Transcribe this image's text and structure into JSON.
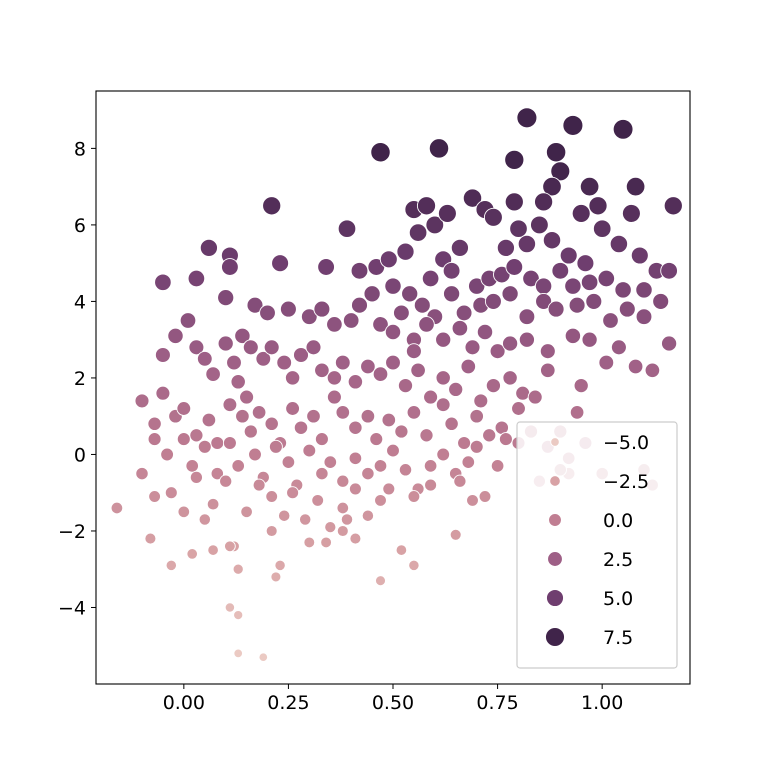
{
  "chart_data": {
    "type": "scatter",
    "title": "",
    "xlabel": "",
    "ylabel": "",
    "xlim": [
      -0.21,
      1.21
    ],
    "ylim": [
      -6.0,
      9.5
    ],
    "xticks": [
      0.0,
      0.25,
      0.5,
      0.75,
      1.0
    ],
    "xtick_labels": [
      "0.00",
      "0.25",
      "0.50",
      "0.75",
      "1.00"
    ],
    "yticks": [
      -4,
      -2,
      0,
      2,
      4,
      6,
      8
    ],
    "ytick_labels": [
      "−4",
      "−2",
      "0",
      "2",
      "4",
      "6",
      "8"
    ],
    "grid": false,
    "hue_and_size_variable": "value",
    "legend": {
      "placement": "lower-right",
      "entries": [
        {
          "label": "−5.0",
          "value": -5.0,
          "color": "#ebcac3"
        },
        {
          "label": "−2.5",
          "value": -2.5,
          "color": "#d8a2a5"
        },
        {
          "label": "0.0",
          "value": 0.0,
          "color": "#c07e92"
        },
        {
          "label": "2.5",
          "value": 2.5,
          "color": "#9e5f86"
        },
        {
          "label": "5.0",
          "value": 5.0,
          "color": "#6f3e6f"
        },
        {
          "label": "7.5",
          "value": 7.5,
          "color": "#40244a"
        }
      ]
    },
    "points": [
      [
        -0.05,
        4.5
      ],
      [
        0.03,
        4.6
      ],
      [
        0.06,
        5.4
      ],
      [
        0.11,
        5.2
      ],
      [
        0.11,
        4.9
      ],
      [
        0.21,
        6.5
      ],
      [
        0.23,
        5.0
      ],
      [
        0.34,
        4.9
      ],
      [
        0.39,
        5.9
      ],
      [
        0.47,
        7.9
      ],
      [
        0.61,
        8.0
      ],
      [
        0.82,
        8.8
      ],
      [
        0.93,
        8.6
      ],
      [
        1.05,
        8.5
      ],
      [
        0.79,
        7.7
      ],
      [
        0.89,
        7.9
      ],
      [
        0.9,
        7.4
      ],
      [
        0.88,
        7.0
      ],
      [
        0.97,
        7.0
      ],
      [
        1.08,
        7.0
      ],
      [
        0.69,
        6.7
      ],
      [
        0.79,
        6.6
      ],
      [
        0.86,
        6.6
      ],
      [
        0.95,
        6.3
      ],
      [
        0.99,
        6.5
      ],
      [
        1.07,
        6.3
      ],
      [
        1.17,
        6.5
      ],
      [
        0.55,
        6.4
      ],
      [
        0.58,
        6.5
      ],
      [
        0.6,
        6.0
      ],
      [
        0.63,
        6.3
      ],
      [
        0.66,
        5.4
      ],
      [
        0.72,
        6.4
      ],
      [
        0.74,
        6.2
      ],
      [
        0.77,
        5.4
      ],
      [
        0.8,
        5.9
      ],
      [
        0.82,
        5.5
      ],
      [
        0.85,
        6.0
      ],
      [
        0.88,
        5.6
      ],
      [
        0.92,
        5.2
      ],
      [
        0.96,
        5.0
      ],
      [
        1.0,
        5.9
      ],
      [
        1.04,
        5.5
      ],
      [
        1.09,
        5.2
      ],
      [
        1.13,
        4.8
      ],
      [
        1.16,
        4.8
      ],
      [
        0.46,
        4.9
      ],
      [
        0.49,
        5.1
      ],
      [
        0.53,
        5.3
      ],
      [
        0.56,
        5.8
      ],
      [
        0.59,
        4.6
      ],
      [
        0.62,
        5.1
      ],
      [
        0.64,
        4.8
      ],
      [
        0.7,
        4.4
      ],
      [
        0.73,
        4.6
      ],
      [
        0.76,
        4.7
      ],
      [
        0.79,
        4.9
      ],
      [
        0.83,
        4.6
      ],
      [
        0.86,
        4.4
      ],
      [
        0.9,
        4.8
      ],
      [
        0.93,
        4.4
      ],
      [
        0.97,
        4.5
      ],
      [
        1.01,
        4.6
      ],
      [
        1.05,
        4.3
      ],
      [
        1.1,
        4.3
      ],
      [
        1.14,
        4.0
      ],
      [
        0.42,
        4.8
      ],
      [
        0.45,
        4.2
      ],
      [
        0.5,
        4.4
      ],
      [
        0.54,
        4.2
      ],
      [
        0.57,
        3.9
      ],
      [
        0.6,
        3.6
      ],
      [
        0.64,
        4.2
      ],
      [
        0.67,
        3.7
      ],
      [
        0.71,
        3.9
      ],
      [
        0.74,
        4.0
      ],
      [
        0.78,
        4.2
      ],
      [
        0.82,
        3.6
      ],
      [
        0.86,
        4.0
      ],
      [
        0.89,
        3.8
      ],
      [
        0.94,
        3.9
      ],
      [
        0.98,
        4.0
      ],
      [
        1.02,
        3.5
      ],
      [
        1.06,
        3.8
      ],
      [
        1.1,
        3.6
      ],
      [
        1.16,
        2.9
      ],
      [
        0.1,
        4.1
      ],
      [
        0.17,
        3.9
      ],
      [
        0.2,
        3.7
      ],
      [
        0.25,
        3.8
      ],
      [
        0.3,
        3.6
      ],
      [
        0.33,
        3.8
      ],
      [
        0.36,
        3.4
      ],
      [
        0.4,
        3.5
      ],
      [
        0.42,
        3.9
      ],
      [
        0.47,
        3.4
      ],
      [
        0.5,
        3.2
      ],
      [
        0.52,
        3.7
      ],
      [
        0.55,
        3.0
      ],
      [
        0.58,
        3.4
      ],
      [
        0.62,
        3.0
      ],
      [
        0.66,
        3.3
      ],
      [
        0.69,
        2.8
      ],
      [
        0.72,
        3.2
      ],
      [
        0.75,
        2.7
      ],
      [
        0.78,
        2.9
      ],
      [
        0.82,
        3.0
      ],
      [
        0.87,
        2.7
      ],
      [
        0.93,
        3.1
      ],
      [
        0.97,
        3.0
      ],
      [
        1.01,
        2.4
      ],
      [
        1.04,
        2.8
      ],
      [
        1.08,
        2.3
      ],
      [
        1.12,
        2.2
      ],
      [
        -0.05,
        2.6
      ],
      [
        -0.02,
        3.1
      ],
      [
        0.01,
        3.5
      ],
      [
        0.03,
        2.8
      ],
      [
        0.05,
        2.5
      ],
      [
        0.07,
        2.1
      ],
      [
        0.1,
        2.9
      ],
      [
        0.12,
        2.4
      ],
      [
        0.14,
        3.1
      ],
      [
        0.16,
        2.8
      ],
      [
        0.19,
        2.5
      ],
      [
        0.21,
        2.8
      ],
      [
        0.24,
        2.4
      ],
      [
        0.26,
        2.0
      ],
      [
        0.28,
        2.6
      ],
      [
        0.31,
        2.8
      ],
      [
        0.33,
        2.2
      ],
      [
        0.36,
        2.0
      ],
      [
        0.38,
        2.4
      ],
      [
        0.41,
        1.9
      ],
      [
        0.44,
        2.3
      ],
      [
        0.47,
        2.1
      ],
      [
        0.5,
        2.4
      ],
      [
        0.53,
        1.8
      ],
      [
        0.56,
        2.2
      ],
      [
        0.59,
        1.5
      ],
      [
        0.62,
        2.0
      ],
      [
        0.65,
        1.7
      ],
      [
        0.68,
        2.3
      ],
      [
        0.71,
        1.4
      ],
      [
        0.74,
        1.8
      ],
      [
        0.78,
        2.0
      ],
      [
        0.81,
        1.6
      ],
      [
        0.84,
        1.5
      ],
      [
        0.87,
        2.2
      ],
      [
        0.95,
        1.8
      ],
      [
        -0.1,
        1.4
      ],
      [
        -0.07,
        0.8
      ],
      [
        -0.05,
        1.6
      ],
      [
        -0.02,
        1.0
      ],
      [
        0.0,
        1.2
      ],
      [
        0.03,
        0.5
      ],
      [
        0.06,
        0.9
      ],
      [
        0.08,
        0.3
      ],
      [
        0.11,
        1.3
      ],
      [
        0.14,
        1.0
      ],
      [
        0.16,
        0.6
      ],
      [
        0.18,
        1.1
      ],
      [
        0.21,
        0.8
      ],
      [
        0.23,
        0.3
      ],
      [
        0.26,
        1.2
      ],
      [
        0.28,
        0.7
      ],
      [
        0.31,
        1.0
      ],
      [
        0.33,
        0.4
      ],
      [
        0.36,
        1.5
      ],
      [
        0.38,
        1.1
      ],
      [
        0.41,
        0.7
      ],
      [
        0.44,
        1.0
      ],
      [
        0.46,
        0.4
      ],
      [
        0.49,
        0.9
      ],
      [
        0.52,
        0.6
      ],
      [
        0.55,
        1.1
      ],
      [
        0.58,
        0.5
      ],
      [
        0.62,
        1.3
      ],
      [
        0.64,
        0.8
      ],
      [
        0.67,
        0.3
      ],
      [
        0.7,
        1.0
      ],
      [
        0.73,
        0.5
      ],
      [
        0.76,
        0.7
      ],
      [
        0.8,
        0.3
      ],
      [
        0.83,
        0.6
      ],
      [
        0.87,
        0.2
      ],
      [
        0.9,
        0.6
      ],
      [
        0.94,
        1.1
      ],
      [
        0.96,
        0.3
      ],
      [
        -0.07,
        0.4
      ],
      [
        -0.04,
        0.0
      ],
      [
        0.0,
        0.4
      ],
      [
        0.02,
        -0.3
      ],
      [
        0.05,
        0.2
      ],
      [
        0.08,
        -0.5
      ],
      [
        0.11,
        0.3
      ],
      [
        0.13,
        -0.3
      ],
      [
        0.17,
        0.0
      ],
      [
        0.19,
        -0.6
      ],
      [
        0.22,
        0.2
      ],
      [
        0.25,
        -0.2
      ],
      [
        0.27,
        -0.8
      ],
      [
        0.3,
        0.1
      ],
      [
        0.33,
        -0.5
      ],
      [
        0.35,
        -0.2
      ],
      [
        0.38,
        -0.7
      ],
      [
        0.41,
        -0.1
      ],
      [
        0.44,
        -0.5
      ],
      [
        0.47,
        -0.3
      ],
      [
        0.5,
        0.1
      ],
      [
        0.53,
        -0.4
      ],
      [
        0.56,
        -0.9
      ],
      [
        0.59,
        -0.3
      ],
      [
        0.62,
        0.0
      ],
      [
        0.65,
        -0.5
      ],
      [
        0.68,
        -0.2
      ],
      [
        0.72,
        -1.1
      ],
      [
        0.75,
        -0.3
      ],
      [
        0.85,
        -0.7
      ],
      [
        0.92,
        -0.5
      ],
      [
        1.0,
        -0.5
      ],
      [
        -0.1,
        -0.5
      ],
      [
        -0.07,
        -1.1
      ],
      [
        -0.03,
        -1.0
      ],
      [
        0.0,
        -1.5
      ],
      [
        0.03,
        -0.6
      ],
      [
        0.05,
        -1.7
      ],
      [
        0.07,
        -1.3
      ],
      [
        0.1,
        -0.7
      ],
      [
        0.12,
        -2.4
      ],
      [
        0.15,
        -1.5
      ],
      [
        0.18,
        -0.8
      ],
      [
        0.21,
        -1.1
      ],
      [
        0.24,
        -1.6
      ],
      [
        0.26,
        -1.0
      ],
      [
        0.29,
        -1.7
      ],
      [
        0.32,
        -1.2
      ],
      [
        0.35,
        -1.9
      ],
      [
        0.38,
        -1.4
      ],
      [
        0.41,
        -0.9
      ],
      [
        0.44,
        -1.6
      ],
      [
        0.47,
        -1.2
      ],
      [
        0.49,
        -0.9
      ],
      [
        0.55,
        -1.1
      ],
      [
        0.59,
        -0.8
      ],
      [
        0.65,
        -2.1
      ],
      [
        0.69,
        -1.2
      ],
      [
        -0.16,
        -1.4
      ],
      [
        -0.08,
        -2.2
      ],
      [
        -0.03,
        -2.9
      ],
      [
        0.02,
        -2.6
      ],
      [
        0.07,
        -2.5
      ],
      [
        0.11,
        -2.4
      ],
      [
        0.13,
        -3.0
      ],
      [
        0.21,
        -2.0
      ],
      [
        0.22,
        -3.2
      ],
      [
        0.23,
        -2.9
      ],
      [
        0.3,
        -2.3
      ],
      [
        0.34,
        -2.3
      ],
      [
        0.38,
        -2.0
      ],
      [
        0.39,
        -1.7
      ],
      [
        0.41,
        -2.2
      ],
      [
        0.47,
        -3.3
      ],
      [
        0.52,
        -2.5
      ],
      [
        0.55,
        -2.9
      ],
      [
        0.11,
        -4.0
      ],
      [
        0.13,
        -4.2
      ],
      [
        0.13,
        -5.2
      ],
      [
        0.19,
        -5.3
      ],
      [
        0.66,
        -0.7
      ],
      [
        0.77,
        0.4
      ],
      [
        0.8,
        1.2
      ],
      [
        0.92,
        -0.1
      ],
      [
        0.9,
        -0.4
      ],
      [
        0.7,
        0.2
      ],
      [
        1.1,
        -0.4
      ],
      [
        1.12,
        -0.8
      ],
      [
        0.15,
        1.5
      ],
      [
        0.13,
        1.9
      ],
      [
        0.55,
        2.7
      ]
    ]
  }
}
